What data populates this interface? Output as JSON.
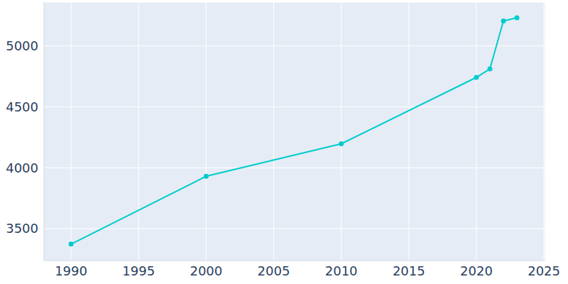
{
  "chart_data": {
    "type": "line",
    "x": [
      1990,
      2000,
      2010,
      2020,
      2021,
      2022,
      2023
    ],
    "values": [
      3373,
      3930,
      4197,
      4742,
      4812,
      5205,
      5232
    ],
    "color": "#00cccc",
    "marker": "circle",
    "xlim": [
      1988,
      2025.1
    ],
    "xticks": [
      1990,
      1995,
      2000,
      2005,
      2010,
      2015,
      2020,
      2025
    ],
    "ylim": [
      3238,
      5360
    ],
    "yticks": [
      3500,
      4000,
      4500,
      5000
    ],
    "grid": true
  }
}
